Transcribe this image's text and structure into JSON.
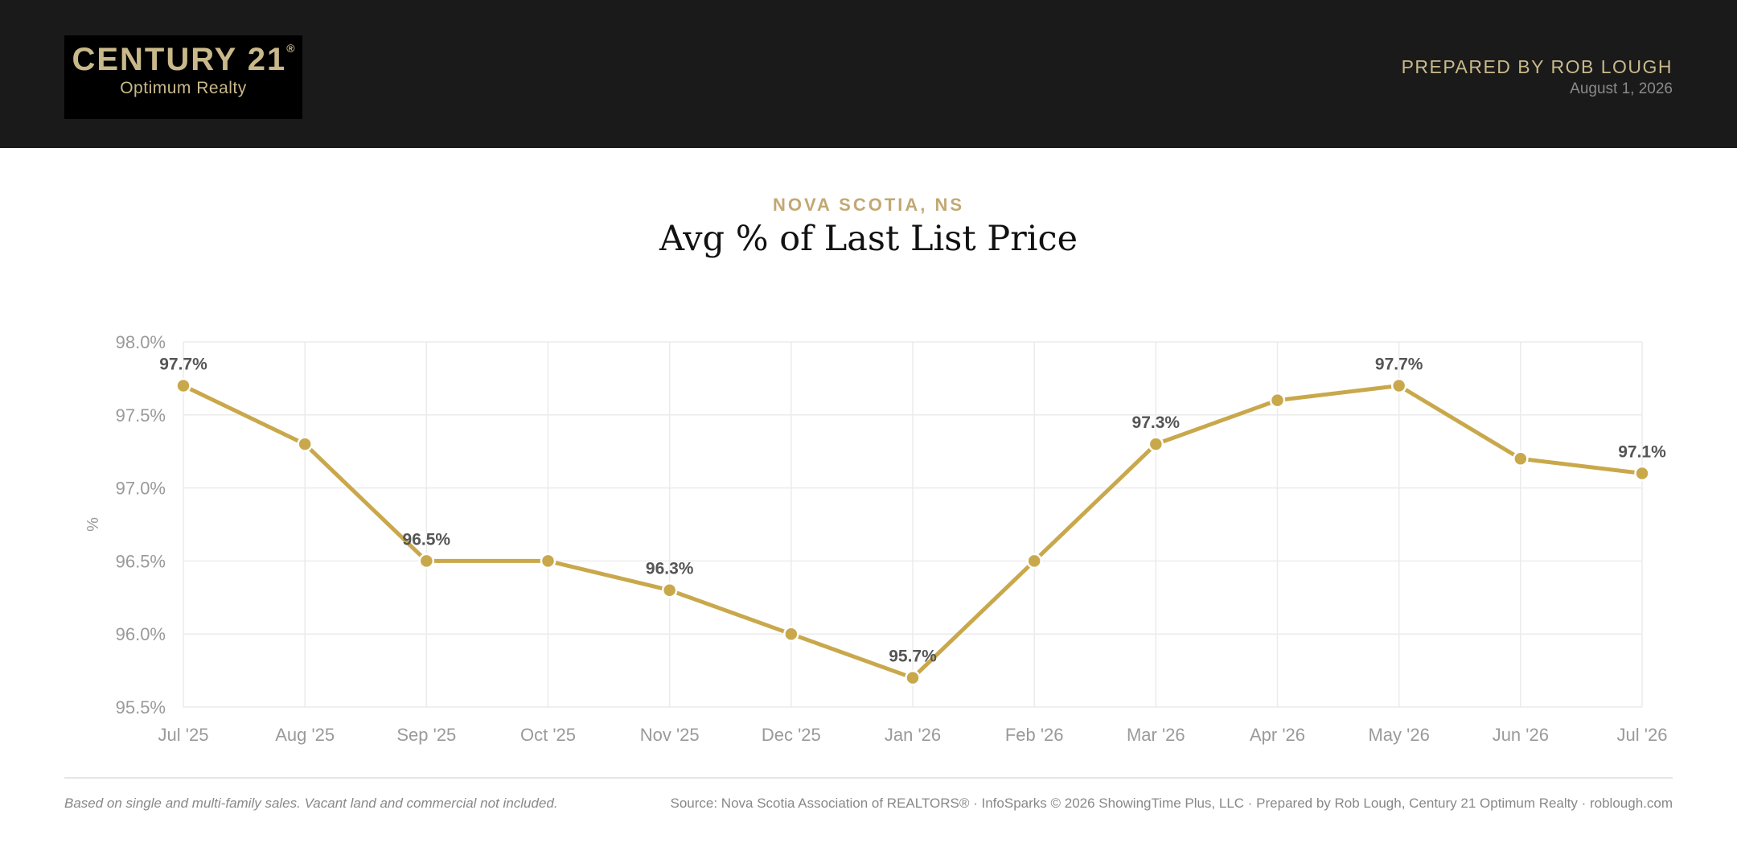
{
  "header": {
    "logo_main": "CENTURY 21",
    "logo_registered": "®",
    "logo_sub": "Optimum Realty",
    "prepared_by": "PREPARED BY ROB LOUGH",
    "date": "August 1, 2026"
  },
  "location": "NOVA SCOTIA, NS",
  "colors": {
    "accent": "#c9a84c",
    "header_bg": "#1a1a1a",
    "gold_text": "#c9b98a"
  },
  "chart_data": {
    "type": "line",
    "title": "Avg % of Last List Price",
    "ylabel": "%",
    "xlabel": "",
    "ylim": [
      95.5,
      98.0
    ],
    "y_ticks": [
      98.0,
      97.5,
      97.0,
      96.5,
      96.0,
      95.5
    ],
    "y_tick_labels": [
      "98.0%",
      "97.5%",
      "97.0%",
      "96.5%",
      "96.0%",
      "95.5%"
    ],
    "grid": true,
    "categories": [
      "Jul '25",
      "Aug '25",
      "Sep '25",
      "Oct '25",
      "Nov '25",
      "Dec '25",
      "Jan '26",
      "Feb '26",
      "Mar '26",
      "Apr '26",
      "May '26",
      "Jun '26",
      "Jul '26"
    ],
    "series": [
      {
        "values": [
          97.7,
          97.3,
          96.5,
          96.5,
          96.3,
          96.0,
          95.7,
          96.5,
          97.3,
          97.6,
          97.7,
          97.2,
          97.1
        ]
      }
    ],
    "data_labels": [
      {
        "index": 0,
        "text": "97.7%"
      },
      {
        "index": 2,
        "text": "96.5%"
      },
      {
        "index": 4,
        "text": "96.3%"
      },
      {
        "index": 6,
        "text": "95.7%"
      },
      {
        "index": 8,
        "text": "97.3%"
      },
      {
        "index": 10,
        "text": "97.7%"
      },
      {
        "index": 12,
        "text": "97.1%"
      }
    ]
  },
  "footer": {
    "note": "Based on single and multi-family sales. Vacant land and commercial not included.",
    "source": "Source: Nova Scotia Association of REALTORS® · InfoSparks © 2026 ShowingTime Plus, LLC · Prepared by Rob Lough, Century 21 Optimum Realty · roblough.com"
  }
}
